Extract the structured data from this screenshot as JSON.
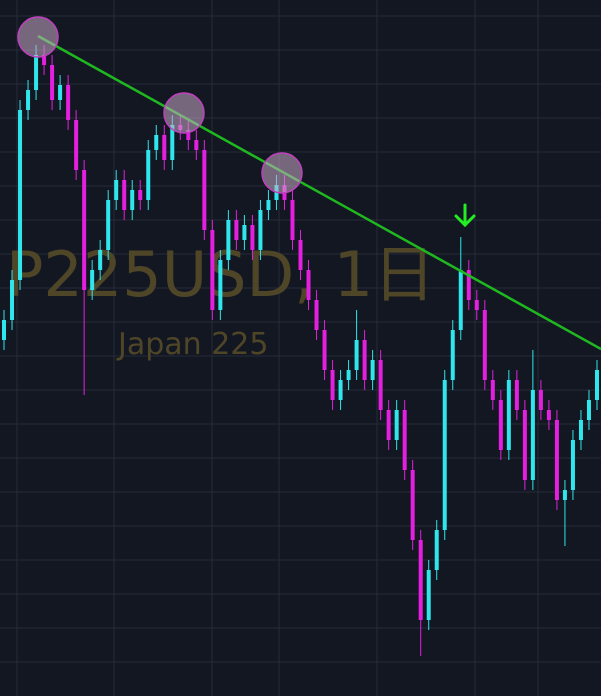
{
  "chart_data": {
    "type": "candlestick",
    "watermark": "P225USD, 1日",
    "subtitle": "Japan 225",
    "up_color": "#2ee6ec",
    "down_color": "#e31fe0",
    "ylim": [
      0,
      696
    ],
    "open": [
      356,
      376,
      416,
      586,
      606,
      641,
      631,
      596,
      611,
      576,
      526,
      406,
      426,
      446,
      496,
      516,
      486,
      506,
      496,
      546,
      561,
      536,
      571,
      566,
      556,
      546,
      466,
      386,
      436,
      476,
      456,
      471,
      446,
      486,
      496,
      511,
      496,
      456,
      426,
      396,
      366,
      326,
      296,
      316,
      326,
      356,
      316,
      336,
      286,
      256,
      286,
      226,
      156,
      76,
      126,
      166,
      316,
      366,
      426,
      396,
      386,
      316,
      296,
      246,
      316,
      286,
      216,
      306,
      286,
      276,
      196,
      206,
      256,
      276,
      296
    ],
    "high": [
      386,
      426,
      596,
      616,
      651,
      651,
      641,
      621,
      621,
      586,
      536,
      436,
      456,
      506,
      526,
      526,
      516,
      516,
      556,
      571,
      571,
      581,
      581,
      576,
      566,
      556,
      476,
      446,
      486,
      486,
      481,
      481,
      496,
      506,
      521,
      521,
      506,
      466,
      436,
      406,
      376,
      336,
      326,
      336,
      386,
      366,
      346,
      346,
      296,
      296,
      296,
      236,
      166,
      136,
      176,
      326,
      376,
      459,
      436,
      406,
      396,
      326,
      306,
      326,
      326,
      296,
      346,
      316,
      296,
      286,
      216,
      266,
      286,
      306,
      336
    ],
    "low": [
      346,
      366,
      406,
      576,
      596,
      621,
      586,
      586,
      566,
      516,
      301,
      396,
      416,
      436,
      486,
      476,
      476,
      486,
      486,
      536,
      526,
      526,
      556,
      546,
      536,
      456,
      376,
      376,
      426,
      446,
      446,
      436,
      436,
      476,
      486,
      486,
      446,
      416,
      386,
      356,
      316,
      286,
      286,
      306,
      316,
      306,
      306,
      276,
      246,
      246,
      216,
      146,
      40,
      66,
      116,
      156,
      306,
      356,
      386,
      376,
      306,
      286,
      236,
      236,
      276,
      206,
      206,
      276,
      266,
      186,
      150,
      196,
      246,
      266,
      286
    ],
    "close": [
      376,
      416,
      586,
      606,
      641,
      631,
      596,
      611,
      576,
      526,
      406,
      426,
      446,
      496,
      516,
      486,
      506,
      496,
      546,
      561,
      536,
      571,
      566,
      556,
      546,
      466,
      386,
      436,
      476,
      456,
      471,
      446,
      486,
      496,
      511,
      496,
      456,
      426,
      396,
      366,
      326,
      296,
      316,
      326,
      356,
      316,
      336,
      286,
      256,
      286,
      226,
      156,
      76,
      126,
      166,
      316,
      366,
      426,
      396,
      386,
      316,
      296,
      246,
      316,
      286,
      216,
      306,
      286,
      276,
      196,
      206,
      256,
      276,
      296,
      326
    ]
  }
}
